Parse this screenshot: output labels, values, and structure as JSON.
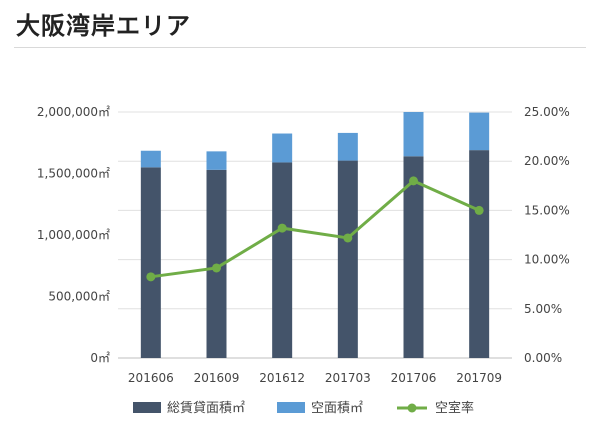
{
  "header": {
    "title": "大阪湾岸エリア"
  },
  "chart_data": {
    "type": "bar",
    "stacked": true,
    "categories": [
      "201606",
      "201609",
      "201612",
      "201703",
      "201706",
      "201709"
    ],
    "series": [
      {
        "name": "総賃貸面積㎡",
        "type": "bar",
        "axis": "left",
        "color": "#44546a",
        "values": [
          1550000,
          1530000,
          1590000,
          1605000,
          1640000,
          1690000
        ]
      },
      {
        "name": "空面積㎡",
        "type": "bar",
        "axis": "left",
        "color": "#5b9bd5",
        "values": [
          135000,
          150000,
          235000,
          225000,
          360000,
          305000
        ]
      },
      {
        "name": "空室率",
        "type": "line",
        "axis": "right",
        "color": "#70ad47",
        "values": [
          0.0825,
          0.0915,
          0.132,
          0.122,
          0.18,
          0.15
        ]
      }
    ],
    "y_left": {
      "ylim": [
        0,
        2000000
      ],
      "ticks": [
        "0㎡",
        "500,000㎡",
        "1,000,000㎡",
        "1,500,000㎡",
        "2,000,000㎡"
      ]
    },
    "y_right": {
      "ylim": [
        0,
        0.25
      ],
      "ticks": [
        "0.00%",
        "5.00%",
        "10.00%",
        "15.00%",
        "20.00%",
        "25.00%"
      ]
    },
    "grid": true,
    "legend": "bottom"
  }
}
